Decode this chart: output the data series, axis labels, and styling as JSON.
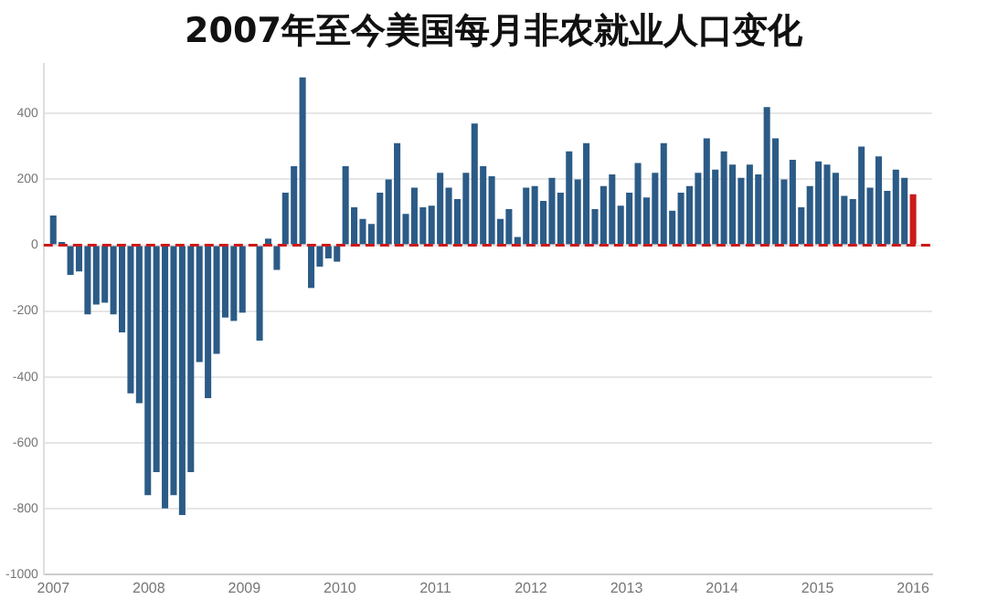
{
  "chart_data": {
    "type": "bar",
    "title": "2007年至今美国每月非农就业人口变化",
    "x": [
      2007,
      2007.09,
      2007.18,
      2007.27,
      2007.36,
      2007.45,
      2007.54,
      2007.63,
      2007.72,
      2007.81,
      2007.9,
      2007.99,
      2008.08,
      2008.17,
      2008.26,
      2008.35,
      2008.44,
      2008.53,
      2008.62,
      2008.71,
      2008.8,
      2008.89,
      2008.98,
      2009.07,
      2009.16,
      2009.25,
      2009.34,
      2009.43,
      2009.52,
      2009.61,
      2009.7,
      2009.79,
      2009.88,
      2009.97,
      2010.06,
      2010.15,
      2010.24,
      2010.33,
      2010.42,
      2010.51,
      2010.6,
      2010.69,
      2010.78,
      2010.87,
      2010.96,
      2011.05,
      2011.14,
      2011.23,
      2011.32,
      2011.41,
      2011.5,
      2011.59,
      2011.68,
      2011.77,
      2011.86,
      2011.95,
      2012.04,
      2012.13,
      2012.22,
      2012.31,
      2012.4,
      2012.49,
      2012.58,
      2012.67,
      2012.76,
      2012.85,
      2012.94,
      2013.03,
      2013.12,
      2013.21,
      2013.3,
      2013.39,
      2013.48,
      2013.57,
      2013.66,
      2013.75,
      2013.84,
      2013.93,
      2014.02,
      2014.11,
      2014.2,
      2014.29,
      2014.38,
      2014.47,
      2014.56,
      2014.65,
      2014.74,
      2014.83,
      2014.92,
      2015.01,
      2015.1,
      2015.19,
      2015.28,
      2015.37,
      2015.46,
      2015.55,
      2015.64,
      2015.73,
      2015.82,
      2015.91,
      2016
    ],
    "values": [
      90,
      10,
      -90,
      -80,
      -210,
      -180,
      -175,
      -210,
      -265,
      -450,
      -480,
      -760,
      -690,
      -800,
      -760,
      -820,
      -690,
      -355,
      -465,
      -330,
      -220,
      -230,
      -205,
      0,
      -290,
      20,
      -75,
      160,
      240,
      510,
      -130,
      -65,
      -40,
      -50,
      240,
      115,
      80,
      65,
      160,
      200,
      310,
      95,
      175,
      115,
      120,
      220,
      175,
      140,
      220,
      370,
      240,
      210,
      80,
      110,
      25,
      175,
      180,
      135,
      205,
      160,
      285,
      200,
      310,
      110,
      180,
      215,
      120,
      160,
      250,
      145,
      220,
      310,
      105,
      160,
      180,
      220,
      325,
      230,
      285,
      245,
      205,
      245,
      215,
      420,
      325,
      200,
      260,
      115,
      180,
      255,
      245,
      220,
      150,
      140,
      300,
      175,
      270,
      165,
      230,
      205,
      155
    ],
    "colors": [
      "#2b5b86",
      "#2b5b86",
      "#2b5b86",
      "#2b5b86",
      "#2b5b86",
      "#2b5b86",
      "#2b5b86",
      "#2b5b86",
      "#2b5b86",
      "#2b5b86",
      "#2b5b86",
      "#2b5b86",
      "#2b5b86",
      "#2b5b86",
      "#2b5b86",
      "#2b5b86",
      "#2b5b86",
      "#2b5b86",
      "#2b5b86",
      "#2b5b86",
      "#2b5b86",
      "#2b5b86",
      "#2b5b86",
      "#2b5b86",
      "#2b5b86",
      "#2b5b86",
      "#2b5b86",
      "#2b5b86",
      "#2b5b86",
      "#2b5b86",
      "#2b5b86",
      "#2b5b86",
      "#2b5b86",
      "#2b5b86",
      "#2b5b86",
      "#2b5b86",
      "#2b5b86",
      "#2b5b86",
      "#2b5b86",
      "#2b5b86",
      "#2b5b86",
      "#2b5b86",
      "#2b5b86",
      "#2b5b86",
      "#2b5b86",
      "#2b5b86",
      "#2b5b86",
      "#2b5b86",
      "#2b5b86",
      "#2b5b86",
      "#2b5b86",
      "#2b5b86",
      "#2b5b86",
      "#2b5b86",
      "#2b5b86",
      "#2b5b86",
      "#2b5b86",
      "#2b5b86",
      "#2b5b86",
      "#2b5b86",
      "#2b5b86",
      "#2b5b86",
      "#2b5b86",
      "#2b5b86",
      "#2b5b86",
      "#2b5b86",
      "#2b5b86",
      "#2b5b86",
      "#2b5b86",
      "#2b5b86",
      "#2b5b86",
      "#2b5b86",
      "#2b5b86",
      "#2b5b86",
      "#2b5b86",
      "#2b5b86",
      "#2b5b86",
      "#2b5b86",
      "#2b5b86",
      "#2b5b86",
      "#2b5b86",
      "#2b5b86",
      "#2b5b86",
      "#2b5b86",
      "#2b5b86",
      "#2b5b86",
      "#2b5b86",
      "#2b5b86",
      "#2b5b86",
      "#2b5b86",
      "#2b5b86",
      "#2b5b86",
      "#2b5b86",
      "#2b5b86",
      "#2b5b86",
      "#2b5b86",
      "#2b5b86",
      "#2b5b86",
      "#2b5b86",
      "#2b5b86",
      "#cc1a1a"
    ],
    "xlim": [
      2006.9,
      2016.2
    ],
    "xticks": [
      2007,
      2008,
      2009,
      2010,
      2011,
      2012,
      2013,
      2014,
      2015,
      2016
    ],
    "ylim": [
      -1000,
      550
    ],
    "yticks": [
      -1000,
      -800,
      -600,
      -400,
      -200,
      0,
      200,
      400
    ],
    "ref_lines": [
      {
        "axis": "y",
        "value": 0,
        "color": "#cc1a1a",
        "line_style": "dashed"
      }
    ],
    "grid": "y",
    "legend": false
  }
}
